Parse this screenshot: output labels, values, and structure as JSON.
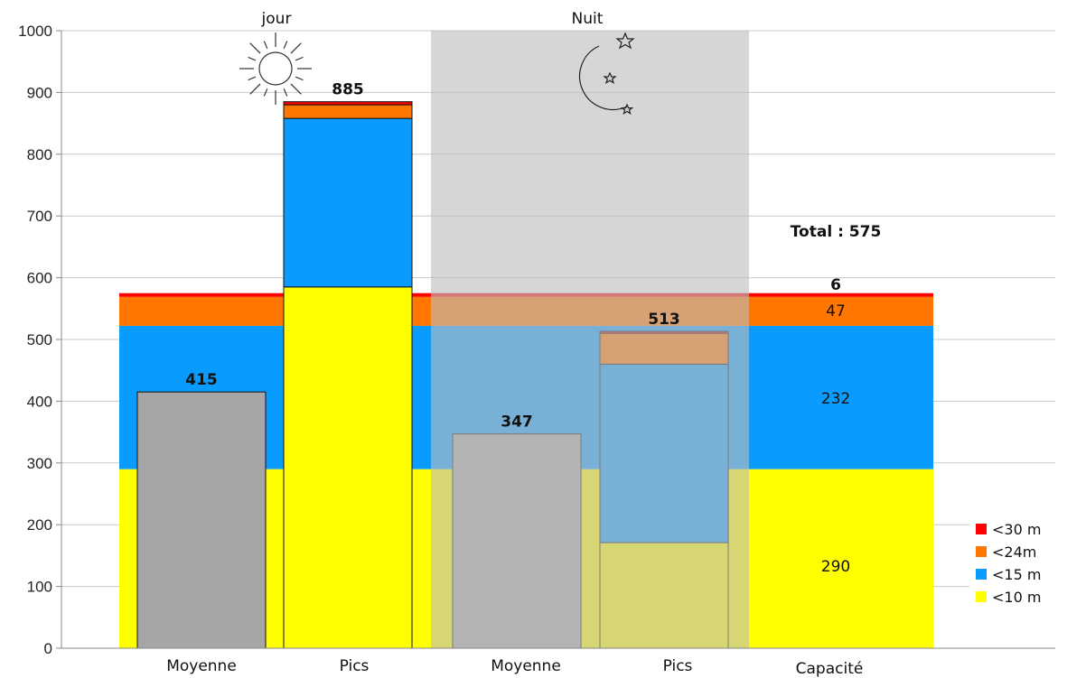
{
  "chart_data": {
    "type": "bar",
    "stacked": true,
    "ylim": [
      0,
      1000
    ],
    "yticks": [
      0,
      100,
      200,
      300,
      400,
      500,
      600,
      700,
      800,
      900,
      1000
    ],
    "grid": true,
    "legend_position": "bottom-right",
    "periods": [
      {
        "label": "jour",
        "icon": "sun-icon",
        "shaded": false
      },
      {
        "label": "Nuit",
        "icon": "moon-stars-icon",
        "shaded": true,
        "shade_color": "#bdbdbd"
      }
    ],
    "categories": [
      "Moyenne",
      "Pics",
      "Moyenne",
      "Pics",
      "Capacité"
    ],
    "capacity_band": {
      "total_label": "Total : 575",
      "segments": [
        {
          "name": "<10 m",
          "value": 290,
          "color": "#ffff00"
        },
        {
          "name": "<15 m",
          "value": 232,
          "color": "#0a9bff"
        },
        {
          "name": "<24m",
          "value": 47,
          "color": "#ff7700"
        },
        {
          "name": "<30 m",
          "value": 6,
          "color": "#ff0000"
        }
      ]
    },
    "bars": [
      {
        "category": "Moyenne",
        "period": "jour",
        "total": 415,
        "total_label": "415",
        "segments": [
          {
            "name": "Moyenne",
            "value": 415,
            "color": "#a6a6a6"
          }
        ]
      },
      {
        "category": "Pics",
        "period": "jour",
        "total": 885,
        "total_label": "885",
        "segments": [
          {
            "name": "<10 m",
            "value": 585,
            "color": "#ffff00"
          },
          {
            "name": "<15 m",
            "value": 273,
            "color": "#0a9bff"
          },
          {
            "name": "<24m",
            "value": 22,
            "color": "#ff7700"
          },
          {
            "name": "<30 m",
            "value": 5,
            "color": "#ff0000"
          }
        ]
      },
      {
        "category": "Moyenne",
        "period": "Nuit",
        "total": 347,
        "total_label": "347",
        "segments": [
          {
            "name": "Moyenne",
            "value": 347,
            "color": "#a6a6a6"
          }
        ]
      },
      {
        "category": "Pics",
        "period": "Nuit",
        "total": 513,
        "total_label": "513",
        "segments": [
          {
            "name": "<10 m",
            "value": 171,
            "color": "#ffff00"
          },
          {
            "name": "<15 m",
            "value": 289,
            "color": "#0a9bff"
          },
          {
            "name": "<24m",
            "value": 50,
            "color": "#ff7700"
          },
          {
            "name": "<30 m",
            "value": 3,
            "color": "#ff0000"
          }
        ]
      }
    ],
    "segment_labels": [
      "6",
      "47",
      "232",
      "290"
    ],
    "legend": [
      {
        "name": "<30 m",
        "color": "#ff0000"
      },
      {
        "name": "<24m",
        "color": "#ff7700"
      },
      {
        "name": "<15 m",
        "color": "#0a9bff"
      },
      {
        "name": "<10 m",
        "color": "#ffff00"
      }
    ]
  }
}
